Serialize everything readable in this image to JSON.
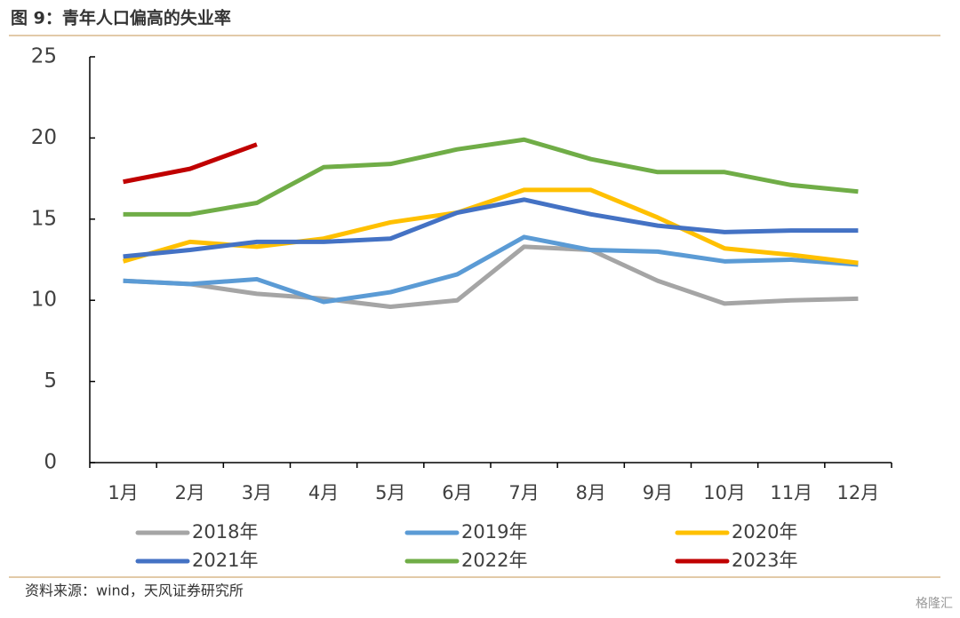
{
  "chart_data": {
    "type": "line",
    "title": "图 9：青年人口偏高的失业率",
    "source": "资料来源：wind，天风证券研究所",
    "watermark": "格隆汇",
    "categories": [
      "1月",
      "2月",
      "3月",
      "4月",
      "5月",
      "6月",
      "7月",
      "8月",
      "9月",
      "10月",
      "11月",
      "12月"
    ],
    "series": [
      {
        "name": "2018年",
        "color": "#a5a5a5",
        "values": [
          11.2,
          11.0,
          10.4,
          10.1,
          9.6,
          10.0,
          13.3,
          13.1,
          11.2,
          9.8,
          10.0,
          10.1
        ]
      },
      {
        "name": "2019年",
        "color": "#5b9bd5",
        "values": [
          11.2,
          11.0,
          11.3,
          9.9,
          10.5,
          11.6,
          13.9,
          13.1,
          13.0,
          12.4,
          12.5,
          12.2
        ]
      },
      {
        "name": "2020年",
        "color": "#ffc000",
        "values": [
          12.4,
          13.6,
          13.3,
          13.8,
          14.8,
          15.4,
          16.8,
          16.8,
          15.1,
          13.2,
          12.8,
          12.3
        ]
      },
      {
        "name": "2021年",
        "color": "#4472c4",
        "values": [
          12.7,
          13.1,
          13.6,
          13.6,
          13.8,
          15.4,
          16.2,
          15.3,
          14.6,
          14.2,
          14.3,
          14.3
        ]
      },
      {
        "name": "2022年",
        "color": "#70ad47",
        "values": [
          15.3,
          15.3,
          16.0,
          18.2,
          18.4,
          19.3,
          19.9,
          18.7,
          17.9,
          17.9,
          17.1,
          16.7
        ]
      },
      {
        "name": "2023年",
        "color": "#c00000",
        "values": [
          17.3,
          18.1,
          19.6,
          null,
          null,
          null,
          null,
          null,
          null,
          null,
          null,
          null
        ]
      }
    ],
    "ylim": [
      0,
      25
    ],
    "yticks": [
      0,
      5,
      10,
      15,
      20,
      25
    ],
    "grid": false
  }
}
